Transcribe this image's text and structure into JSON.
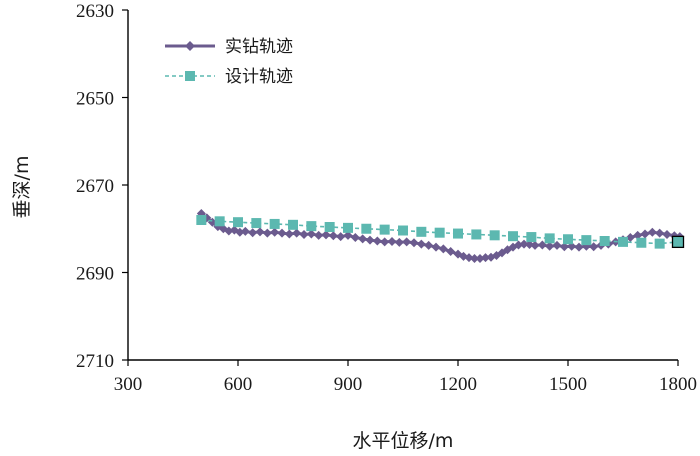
{
  "chart_data": {
    "type": "line",
    "title": "",
    "xlabel": "水平位移/m",
    "ylabel": "垂深/m",
    "xlim": [
      300,
      1800
    ],
    "ylim": [
      2630,
      2710
    ],
    "y_inverted": true,
    "x_ticks": [
      300,
      600,
      900,
      1200,
      1500,
      1800
    ],
    "y_ticks": [
      2630,
      2650,
      2670,
      2690,
      2710
    ],
    "x_tick_labels": [
      "300",
      "600",
      "900",
      "1200",
      "1500",
      "1800"
    ],
    "y_tick_labels": [
      "2630",
      "2650",
      "2670",
      "2690",
      "2710"
    ],
    "grid": false,
    "legend_position": "top-left",
    "series": [
      {
        "name": "实钻轨迹",
        "color": "#6b5b8e",
        "marker": "diamond",
        "x": [
          500,
          515,
          530,
          545,
          560,
          575,
          590,
          605,
          620,
          640,
          660,
          680,
          700,
          720,
          740,
          760,
          780,
          800,
          820,
          840,
          860,
          880,
          900,
          920,
          940,
          960,
          980,
          1000,
          1020,
          1040,
          1060,
          1080,
          1100,
          1120,
          1140,
          1160,
          1180,
          1200,
          1215,
          1230,
          1245,
          1260,
          1275,
          1290,
          1305,
          1320,
          1335,
          1350,
          1365,
          1380,
          1395,
          1410,
          1430,
          1450,
          1470,
          1490,
          1510,
          1530,
          1550,
          1570,
          1590,
          1610,
          1630,
          1650,
          1670,
          1690,
          1710,
          1730,
          1750,
          1770,
          1790,
          1805
        ],
        "y": [
          2676.5,
          2677.5,
          2678.5,
          2679.5,
          2680.0,
          2680.5,
          2680.3,
          2680.8,
          2680.6,
          2680.9,
          2680.7,
          2681.0,
          2680.8,
          2681.0,
          2681.2,
          2681.0,
          2681.3,
          2681.2,
          2681.5,
          2681.4,
          2681.6,
          2681.8,
          2681.5,
          2682.0,
          2682.3,
          2682.6,
          2682.8,
          2683.0,
          2682.9,
          2683.1,
          2683.0,
          2683.2,
          2683.5,
          2683.8,
          2684.2,
          2684.6,
          2685.2,
          2685.8,
          2686.3,
          2686.6,
          2686.8,
          2686.8,
          2686.6,
          2686.5,
          2686.1,
          2685.5,
          2684.8,
          2684.2,
          2683.7,
          2683.5,
          2683.6,
          2683.8,
          2683.7,
          2684.0,
          2683.8,
          2684.1,
          2684.0,
          2684.2,
          2684.0,
          2684.1,
          2683.8,
          2683.5,
          2683.0,
          2682.5,
          2682.0,
          2681.5,
          2681.2,
          2680.8,
          2681.0,
          2681.3,
          2681.6,
          2681.8
        ]
      },
      {
        "name": "设计轨迹",
        "color": "#5cb8b0",
        "marker": "square",
        "x": [
          500,
          550,
          600,
          650,
          700,
          750,
          800,
          850,
          900,
          950,
          1000,
          1050,
          1100,
          1150,
          1200,
          1250,
          1300,
          1350,
          1400,
          1450,
          1500,
          1550,
          1600,
          1650,
          1700,
          1750,
          1800
        ],
        "y": [
          2678.0,
          2678.3,
          2678.5,
          2678.7,
          2678.9,
          2679.1,
          2679.4,
          2679.6,
          2679.8,
          2680.0,
          2680.2,
          2680.4,
          2680.7,
          2680.9,
          2681.1,
          2681.3,
          2681.5,
          2681.7,
          2681.9,
          2682.2,
          2682.4,
          2682.6,
          2682.8,
          2683.0,
          2683.2,
          2683.4,
          2683.0
        ]
      }
    ]
  }
}
